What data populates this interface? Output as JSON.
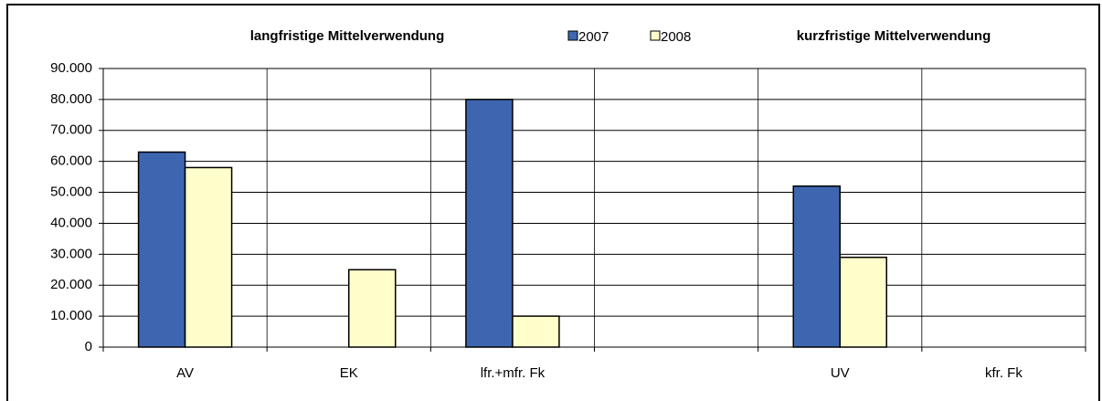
{
  "chart_data": {
    "type": "bar",
    "annotations": [
      "langfristige Mittelverwendung",
      "kurzfristige Mittelverwendung"
    ],
    "categories": [
      "AV",
      "EK",
      "lfr.+mfr. Fk",
      null,
      "UV",
      "kfr. Fk"
    ],
    "series": [
      {
        "name": "2007",
        "color": "#3e66b0",
        "values": [
          63000,
          0,
          80000,
          null,
          52000,
          0
        ]
      },
      {
        "name": "2008",
        "color": "#ffffcc",
        "values": [
          58000,
          25000,
          10000,
          null,
          29000,
          0
        ]
      }
    ],
    "ylim": [
      0,
      90000
    ],
    "yticks": [
      0,
      {
        "value": 10000,
        "label": "10.000"
      },
      {
        "value": 20000,
        "label": "20.000"
      },
      {
        "value": 30000,
        "label": "30.000"
      },
      {
        "value": 40000,
        "label": "40.000"
      },
      {
        "value": 50000,
        "label": "50.000"
      },
      {
        "value": 60000,
        "label": "60.000"
      },
      {
        "value": 70000,
        "label": "70.000"
      },
      {
        "value": 80000,
        "label": "80.000"
      },
      {
        "value": 90000,
        "label": "90.000"
      }
    ],
    "grid": true
  }
}
